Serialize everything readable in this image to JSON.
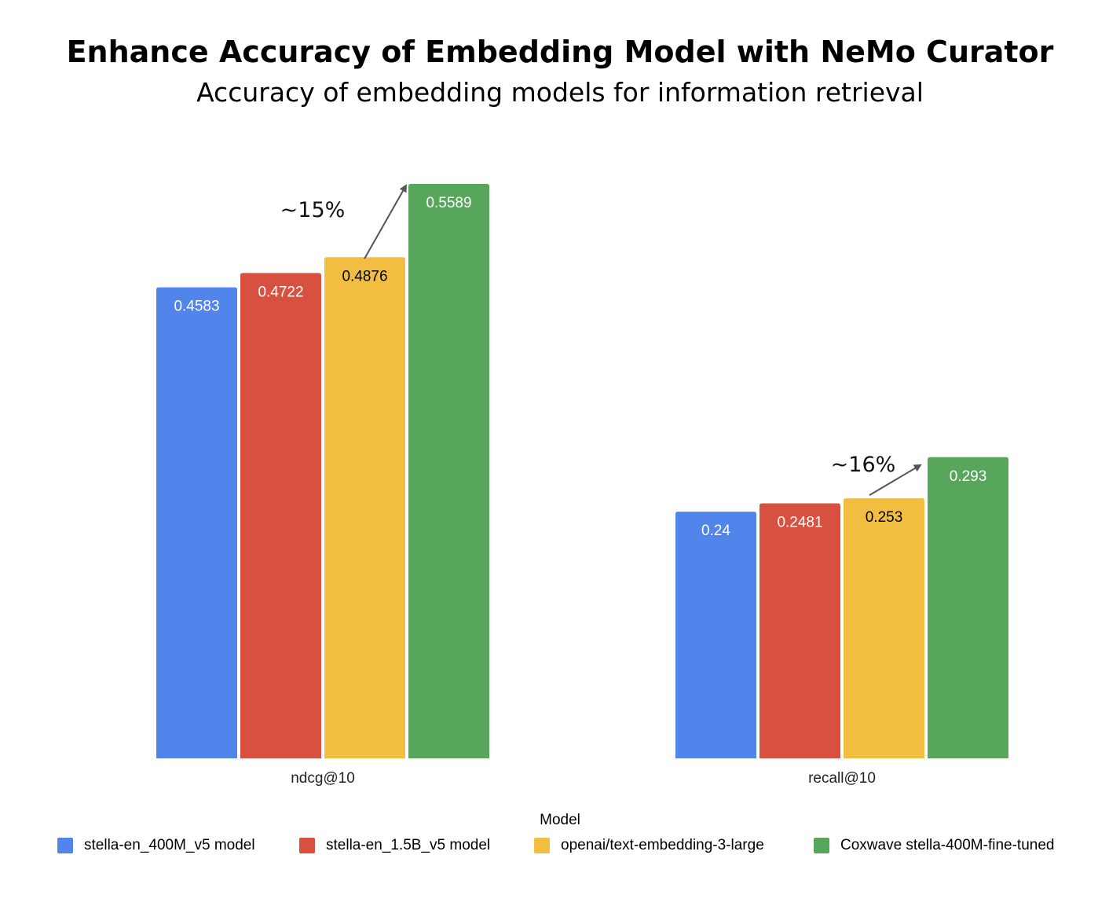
{
  "chart_data": {
    "type": "bar",
    "title": "Enhance Accuracy of Embedding Model with NeMo Curator",
    "subtitle": "Accuracy of embedding models for information retrieval",
    "categories": [
      "ndcg@10",
      "recall@10"
    ],
    "series": [
      {
        "name": "stella-en_400M_v5 model",
        "color": "#5285ec",
        "values": [
          0.4583,
          0.24
        ],
        "labels": [
          "0.4583",
          "0.24"
        ],
        "label_color": "#ffffff"
      },
      {
        "name": "stella-en_1.5B_v5 model",
        "color": "#d85140",
        "values": [
          0.4722,
          0.2481
        ],
        "labels": [
          "0.4722",
          "0.2481"
        ],
        "label_color": "#ffffff"
      },
      {
        "name": "openai/text-embedding-3-large",
        "color": "#f1be42",
        "values": [
          0.4876,
          0.253
        ],
        "labels": [
          "0.4876",
          "0.253"
        ],
        "label_color": "#000000"
      },
      {
        "name": "Coxwave stella-400M-fine-tuned",
        "color": "#58a65c",
        "values": [
          0.5589,
          0.293
        ],
        "labels": [
          "0.5589",
          "0.293"
        ],
        "label_color": "#ffffff"
      }
    ],
    "legend_title": "Model",
    "legend_position": "bottom",
    "ylim": [
      0,
      0.5589
    ],
    "grid": false,
    "annotations": [
      {
        "text": "~15%",
        "category": "ndcg@10",
        "from_series": 2,
        "to_series": 3
      },
      {
        "text": "~16%",
        "category": "recall@10",
        "from_series": 2,
        "to_series": 3
      }
    ]
  }
}
